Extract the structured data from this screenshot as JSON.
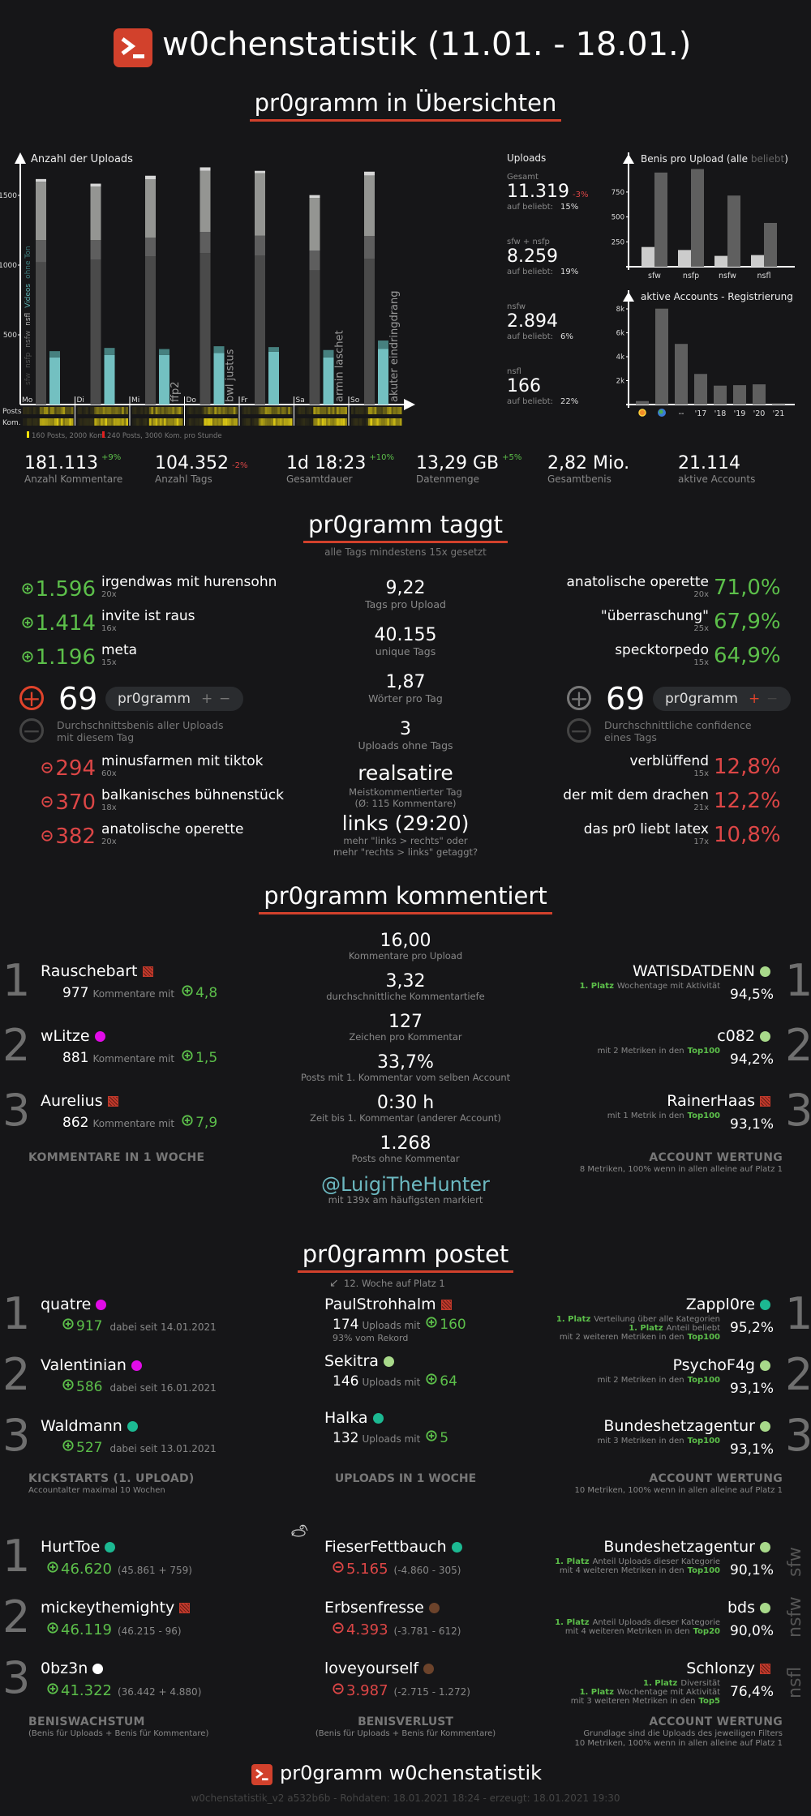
{
  "header": {
    "title": "w0chenstatistik (11.01. - 18.01.)"
  },
  "overview": {
    "title": "pr0gramm in Übersichten",
    "uploads_panel": {
      "title": "Uploads",
      "beliebt_label": "auf beliebt:",
      "groups": [
        {
          "label": "Gesamt",
          "value": "11.319",
          "change": "-3%",
          "beliebt": "15%"
        },
        {
          "label": "sfw + nsfp",
          "value": "8.259",
          "beliebt": "19%"
        },
        {
          "label": "nsfw",
          "value": "2.894",
          "beliebt": "6%"
        },
        {
          "label": "nsfl",
          "value": "166",
          "beliebt": "22%"
        }
      ]
    },
    "heatmap": {
      "row_labels": [
        "Posts",
        "Kom."
      ],
      "legend": [
        {
          "color": "#f5e10a",
          "text": "160 Posts, 2000 Kom."
        },
        {
          "color": "#e02020",
          "text": "240 Posts, 3000 Kom. pro Stunde"
        }
      ]
    },
    "stats": [
      {
        "value": "181.113",
        "change": "+9%",
        "dir": "up",
        "label": "Anzahl Kommentare"
      },
      {
        "value": "104.352",
        "change": "-2%",
        "dir": "down",
        "label": "Anzahl Tags"
      },
      {
        "value": "1d 18:23",
        "change": "+10%",
        "dir": "up",
        "label": "Gesamtdauer"
      },
      {
        "value": "13,29 GB",
        "change": "+5%",
        "dir": "up",
        "label": "Datenmenge"
      },
      {
        "value": "2,82 Mio.",
        "label": "Gesamtbenis"
      },
      {
        "value": "21.114",
        "label": "aktive Accounts"
      }
    ]
  },
  "chart_data": [
    {
      "type": "bar",
      "stacked": true,
      "title": "Anzahl der Uploads",
      "categories": [
        "Mo",
        "Di",
        "Mi",
        "Do",
        "Fr",
        "Sa",
        "So"
      ],
      "yticks": [
        500,
        1000,
        1500
      ],
      "ylim": [
        0,
        1750
      ],
      "series": [
        {
          "name": "sfw",
          "color": "#4a4a4a",
          "values": [
            1021,
            1039,
            1063,
            1086,
            1068,
            963,
            1045
          ]
        },
        {
          "name": "nsfp",
          "color": "#5e5e5e",
          "values": [
            159,
            141,
            134,
            152,
            143,
            141,
            164
          ]
        },
        {
          "name": "nsfw",
          "color": "#949592",
          "values": [
            418,
            383,
            418,
            438,
            449,
            378,
            434
          ]
        },
        {
          "name": "nsfl",
          "color": "#d6d6d6",
          "values": [
            19,
            21,
            26,
            25,
            16,
            20,
            27
          ]
        }
      ],
      "video_series": [
        {
          "name": "Videos",
          "color": "#73c0c1",
          "values": [
            338,
            355,
            355,
            369,
            379,
            338,
            400
          ]
        },
        {
          "name": "ohne Ton",
          "color": "#46807f",
          "values": [
            45,
            51,
            43,
            49,
            33,
            53,
            59
          ]
        }
      ],
      "annotations": [
        {
          "category": "Mi",
          "text": "ffp2"
        },
        {
          "category": "Do",
          "text": "bwl justus"
        },
        {
          "category": "Sa",
          "text": "armin laschet"
        },
        {
          "category": "So",
          "text": "akuter eindringdrang"
        }
      ]
    },
    {
      "type": "bar",
      "title": "Benis pro Upload",
      "title_parts": [
        "Benis pro Upload (",
        "alle",
        " ",
        "beliebt",
        ")"
      ],
      "categories": [
        "sfw",
        "nsfp",
        "nsfw",
        "nsfl"
      ],
      "yticks": [
        250,
        500,
        750
      ],
      "ylim": [
        0,
        1000
      ],
      "series": [
        {
          "name": "alle",
          "color": "#cccccc",
          "values": [
            198,
            168,
            109,
            117
          ]
        },
        {
          "name": "beliebt",
          "color": "#5f5f5f",
          "values": [
            946,
            981,
            715,
            440
          ]
        }
      ]
    },
    {
      "type": "bar",
      "title": "aktive Accounts - Registrierung",
      "categories": [
        "sun-icon",
        "globe-icon",
        "--",
        "'17",
        "'18",
        "'19",
        "'20",
        "'21"
      ],
      "yticks": [
        "2k",
        "4k",
        "6k",
        "8k"
      ],
      "ylim": [
        0,
        8500
      ],
      "series": [
        {
          "name": "aktive Accounts",
          "color": "#5f5f5f",
          "values": [
            290,
            8020,
            5070,
            2560,
            1580,
            1620,
            1690,
            110
          ]
        }
      ]
    }
  ],
  "tags": {
    "title": "pr0gramm taggt",
    "subtitle": "alle Tags mindestens 15x gesetzt",
    "top_benis": [
      {
        "value": "1.596",
        "name": "irgendwas mit hurensohn",
        "count": "20x"
      },
      {
        "value": "1.414",
        "name": "invite ist raus",
        "count": "16x"
      },
      {
        "value": "1.196",
        "name": "meta",
        "count": "15x"
      }
    ],
    "flop_benis": [
      {
        "value": "294",
        "name": "minusfarmen mit tiktok",
        "count": "60x"
      },
      {
        "value": "370",
        "name": "balkanisches bühnenstück",
        "count": "18x"
      },
      {
        "value": "382",
        "name": "anatolische operette",
        "count": "20x"
      }
    ],
    "benis_widget": {
      "value": "69",
      "tag": "pr0gramm",
      "plus": "+",
      "minus": "−",
      "description": [
        "Durchschnittsbenis aller Uploads",
        "mit diesem Tag"
      ]
    },
    "top_conf": [
      {
        "name": "anatolische operette",
        "count": "20x",
        "value": "71,0%"
      },
      {
        "name": "\"überraschung\"",
        "count": "25x",
        "value": "67,9%"
      },
      {
        "name": "specktorpedo",
        "count": "15x",
        "value": "64,9%"
      }
    ],
    "flop_conf": [
      {
        "name": "verblüffend",
        "count": "15x",
        "value": "12,8%"
      },
      {
        "name": "der mit dem drachen",
        "count": "21x",
        "value": "12,2%"
      },
      {
        "name": "das pr0 liebt latex",
        "count": "17x",
        "value": "10,8%"
      }
    ],
    "conf_widget": {
      "value": "69",
      "tag": "pr0gramm",
      "plus": "+",
      "minus": "−",
      "description": [
        "Durchschnittliche confidence",
        "eines Tags"
      ]
    },
    "center": [
      {
        "value": "9,22",
        "label": "Tags pro Upload"
      },
      {
        "value": "40.155",
        "label": "unique Tags"
      },
      {
        "value": "1,87",
        "label": "Wörter pro Tag"
      },
      {
        "value": "3",
        "label": "Uploads ohne Tags"
      }
    ],
    "highlight": {
      "value": "realsatire",
      "lines": [
        "Meistkommentierter Tag",
        "(Ø: 115 Kommentare)"
      ]
    },
    "links": {
      "value": "links (29:20)",
      "lines": [
        "mehr \"links > rechts\" oder",
        "mehr \"rechts > links\" getaggt?"
      ]
    }
  },
  "comments": {
    "title": "pr0gramm kommentiert",
    "unit": "Kommentare mit",
    "top": [
      {
        "rank": "1",
        "name": "Rauschebart",
        "badge": "square",
        "count": "977",
        "score": "4,8"
      },
      {
        "rank": "2",
        "name": "wLitze",
        "badge": "#e10be8",
        "count": "881",
        "score": "1,5"
      },
      {
        "rank": "3",
        "name": "Aurelius",
        "badge": "square",
        "count": "862",
        "score": "7,9"
      }
    ],
    "top_header": "KOMMENTARE IN 1 WOCHE",
    "center": [
      {
        "value": "16,00",
        "label": "Kommentare pro Upload"
      },
      {
        "value": "3,32",
        "label": "durchschnittliche Kommentartiefe"
      },
      {
        "value": "127",
        "label": "Zeichen pro Kommentar"
      },
      {
        "value": "33,7%",
        "label": "Posts mit 1. Kommentar vom selben Account"
      },
      {
        "value": "0:30 h",
        "label": "Zeit bis 1. Kommentar (anderer Account)"
      },
      {
        "value": "1.268",
        "label": "Posts ohne Kommentar"
      }
    ],
    "mention": {
      "value": "@LuigiTheHunter",
      "label": "mit 139x am häufigsten markiert"
    },
    "rating": [
      {
        "rank": "1",
        "name": "WATISDATDENN",
        "badge": "#a8d98a",
        "pct": "94,5%",
        "lines": [
          {
            "pre": "1. Platz",
            "text": "Wochentage mit Aktivität"
          }
        ]
      },
      {
        "rank": "2",
        "name": "c082",
        "badge": "#a8d98a",
        "pct": "94,2%",
        "lines": [
          {
            "text": "mit 2 Metriken in den",
            "post": "Top100"
          }
        ]
      },
      {
        "rank": "3",
        "name": "RainerHaas",
        "badge": "square",
        "pct": "93,1%",
        "lines": [
          {
            "text": "mit 1 Metrik in den",
            "post": "Top100"
          }
        ]
      }
    ],
    "rating_header": "ACCOUNT WERTUNG",
    "rating_sub": [
      "8 Metriken, 100% wenn in allen alleine auf Platz 1"
    ]
  },
  "posts": {
    "title": "pr0gramm postet",
    "kickstarts": [
      {
        "rank": "1",
        "name": "quatre",
        "badge": "#e10be8",
        "score": "917",
        "since": "dabei seit 14.01.2021"
      },
      {
        "rank": "2",
        "name": "Valentinian",
        "badge": "#e10be8",
        "score": "586",
        "since": "dabei seit 16.01.2021"
      },
      {
        "rank": "3",
        "name": "Waldmann",
        "badge": "#1cb992",
        "score": "527",
        "since": "dabei seit 13.01.2021"
      }
    ],
    "kick_header": "KICKSTARTS (1. UPLOAD)",
    "kick_sub": "Accountalter maximal 10 Wochen",
    "uploads_note": "12. Woche auf Platz 1",
    "uploads_unit": "Uploads mit",
    "uploads": [
      {
        "name": "PaulStrohhalm",
        "badge": "square",
        "count": "174",
        "score": "160",
        "extra": "93% vom Rekord"
      },
      {
        "name": "Sekitra",
        "badge": "#a8d98a",
        "count": "146",
        "score": "64"
      },
      {
        "name": "Halka",
        "badge": "#1cb992",
        "count": "132",
        "score": "5"
      }
    ],
    "uploads_header": "UPLOADS IN 1 WOCHE",
    "rating": [
      {
        "rank": "1",
        "name": "Zappl0re",
        "badge": "#1cb992",
        "pct": "95,2%",
        "lines": [
          {
            "pre": "1. Platz",
            "text": "Verteilung über alle Kategorien"
          },
          {
            "pre": "1. Platz",
            "text": "Anteil beliebt"
          },
          {
            "text": "mit 2 weiteren Metriken in den",
            "post": "Top100"
          }
        ]
      },
      {
        "rank": "2",
        "name": "PsychoF4g",
        "badge": "#a8d98a",
        "pct": "93,1%",
        "lines": [
          {
            "text": "mit 2 Metriken in den",
            "post": "Top100"
          }
        ]
      },
      {
        "rank": "3",
        "name": "Bundeshetzagentur",
        "badge": "#a8d98a",
        "pct": "93,1%",
        "lines": [
          {
            "text": "mit 3 Metriken in den",
            "post": "Top100"
          }
        ]
      }
    ],
    "rating_header": "ACCOUNT WERTUNG",
    "rating_sub": [
      "10 Metriken, 100% wenn in allen alleine auf Platz 1"
    ]
  },
  "benis": {
    "growth": [
      {
        "rank": "1",
        "name": "HurtToe",
        "badge": "#1cb992",
        "score": "46.620",
        "detail": "(45.861 + 759)"
      },
      {
        "rank": "2",
        "name": "mickeythemighty",
        "badge": "square",
        "score": "46.119",
        "detail": "(46.215 - 96)"
      },
      {
        "rank": "3",
        "name": "0bz3n",
        "badge": "#ffffff",
        "score": "41.322",
        "detail": "(36.442 + 4.880)"
      }
    ],
    "growth_header": "BENISWACHSTUM",
    "growth_sub": "(Benis für Uploads + Benis für Kommentare)",
    "loss": [
      {
        "name": "FieserFettbauch",
        "badge": "#1cb992",
        "score": "5.165",
        "detail": "(-4.860 - 305)"
      },
      {
        "name": "Erbsenfresse",
        "badge": "#6c432b",
        "score": "4.393",
        "detail": "(-3.781 - 612)"
      },
      {
        "name": "loveyourself",
        "badge": "#6c432b",
        "score": "3.987",
        "detail": "(-2.715 - 1.272)"
      }
    ],
    "loss_header": "BENISVERLUST",
    "loss_sub": "(Benis für Uploads + Benis für Kommentare)",
    "rating": [
      {
        "rank": "sfw",
        "name": "Bundeshetzagentur",
        "badge": "#a8d98a",
        "pct": "90,1%",
        "lines": [
          {
            "pre": "1. Platz",
            "text": "Anteil Uploads dieser Kategorie"
          },
          {
            "text": "mit 4 weiteren Metriken in den",
            "post": "Top100"
          }
        ]
      },
      {
        "rank": "nsfw",
        "name": "bds",
        "badge": "#a8d98a",
        "pct": "90,0%",
        "lines": [
          {
            "pre": "1. Platz",
            "text": "Anteil Uploads dieser Kategorie"
          },
          {
            "text": "mit 4 weiteren Metriken in den",
            "post": "Top20"
          }
        ]
      },
      {
        "rank": "nsfl",
        "name": "Schlonzy",
        "badge": "square",
        "pct": "76,4%",
        "lines": [
          {
            "pre": "1. Platz",
            "text": "Diversität"
          },
          {
            "pre": "1. Platz",
            "text": "Wochentage mit Aktivität"
          },
          {
            "text": "mit 3 weiteren Metriken in den",
            "post": "Top5"
          }
        ]
      }
    ],
    "rating_header": "ACCOUNT WERTUNG",
    "rating_sub": [
      "Grundlage sind die Uploads des jeweiligen Filters",
      "10 Metriken, 100% wenn in allen alleine auf Platz 1"
    ]
  },
  "footer": {
    "title": "pr0gramm w0chenstatistik",
    "meta": "w0chenstatistik_v2 a532b6b - Rohdaten: 18.01.2021 18:24 - erzeugt: 18.01.2021 19:30"
  },
  "colors": {
    "accent": "#d2412c",
    "green": "#5cbf4a",
    "red": "#dc4646",
    "teal": "#73c0c1"
  }
}
